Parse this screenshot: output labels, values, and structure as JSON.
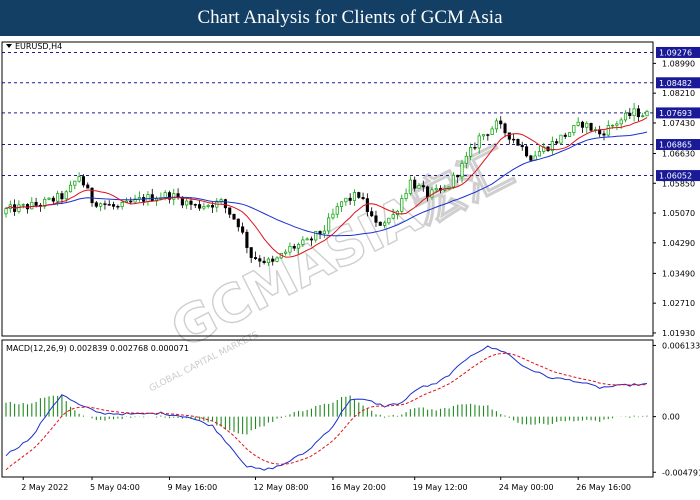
{
  "header": {
    "title": "Chart Analysis for Clients of GCM Asia"
  },
  "watermark": {
    "brand": "GCMASIA宏汇",
    "tagline": "GLOBAL CAPITAL MARKETS"
  },
  "colors": {
    "header_bg": "#123f63",
    "bull": "#00a000",
    "bear": "#000000",
    "ma_fast": "#e0101a",
    "ma_slow": "#1a2fd0",
    "level": "#1a1a99",
    "hist": "#1e8a1e"
  },
  "chart_data": [
    {
      "type": "candlestick",
      "symbol_label": "EURUSD,H4",
      "ylim": [
        1.0185,
        1.0955
      ],
      "y_ticks": [
        {
          "v": 1.0899,
          "label": "1.08990"
        },
        {
          "v": 1.0821,
          "label": "1.08210"
        },
        {
          "v": 1.0743,
          "label": "1.07430"
        },
        {
          "v": 1.0663,
          "label": "1.06630"
        },
        {
          "v": 1.0585,
          "label": "1.05850"
        },
        {
          "v": 1.0507,
          "label": "1.05070"
        },
        {
          "v": 1.0429,
          "label": "1.04290"
        },
        {
          "v": 1.0349,
          "label": "1.03490"
        },
        {
          "v": 1.0271,
          "label": "1.02710"
        },
        {
          "v": 1.0193,
          "label": "1.01930"
        }
      ],
      "levels": [
        {
          "v": 1.09276,
          "label": "1.09276"
        },
        {
          "v": 1.08482,
          "label": "1.08482"
        },
        {
          "v": 1.07693,
          "label": "1.07693"
        },
        {
          "v": 1.06865,
          "label": "1.06865"
        },
        {
          "v": 1.06052,
          "label": "1.06052"
        }
      ],
      "x_labels": [
        "2 May 2022",
        "5 May 04:00",
        "9 May 16:00",
        "12 May 08:00",
        "16 May 20:00",
        "19 May 12:00",
        "24 May 00:00",
        "26 May 16:00"
      ],
      "waypoints": [
        [
          0,
          1.0515
        ],
        [
          8,
          1.053
        ],
        [
          14,
          1.0555
        ],
        [
          17,
          1.0605
        ],
        [
          20,
          1.054
        ],
        [
          26,
          1.052
        ],
        [
          32,
          1.0545
        ],
        [
          38,
          1.0555
        ],
        [
          44,
          1.0525
        ],
        [
          50,
          1.0535
        ],
        [
          54,
          1.048
        ],
        [
          57,
          1.0395
        ],
        [
          62,
          1.0375
        ],
        [
          66,
          1.0415
        ],
        [
          70,
          1.043
        ],
        [
          74,
          1.0465
        ],
        [
          78,
          1.0535
        ],
        [
          82,
          1.0555
        ],
        [
          86,
          1.0475
        ],
        [
          90,
          1.05
        ],
        [
          94,
          1.059
        ],
        [
          98,
          1.0555
        ],
        [
          102,
          1.0565
        ],
        [
          106,
          1.063
        ],
        [
          110,
          1.0705
        ],
        [
          114,
          1.0738
        ],
        [
          118,
          1.0702
        ],
        [
          122,
          1.0655
        ],
        [
          126,
          1.0682
        ],
        [
          130,
          1.0712
        ],
        [
          134,
          1.0742
        ],
        [
          138,
          1.0715
        ],
        [
          142,
          1.0745
        ],
        [
          146,
          1.077
        ],
        [
          149,
          1.0765
        ]
      ]
    },
    {
      "type": "macd",
      "label": "MACD(12,26,9) 0.002839 0.002768 0.000071",
      "ylim": [
        -0.0052,
        0.0066
      ],
      "y_ticks": [
        {
          "v": 0.006133,
          "label": "0.006133"
        },
        {
          "v": 0.0,
          "label": "0.00"
        },
        {
          "v": -0.004791,
          "label": "-0.004791"
        }
      ],
      "macd_waypoints": [
        [
          0,
          -0.0033
        ],
        [
          6,
          -0.0018
        ],
        [
          10,
          0.0005
        ],
        [
          13,
          0.0019
        ],
        [
          17,
          0.001
        ],
        [
          22,
          0.0003
        ],
        [
          30,
          0.0002
        ],
        [
          36,
          0.0003
        ],
        [
          42,
          0.0
        ],
        [
          48,
          -0.0008
        ],
        [
          52,
          -0.0025
        ],
        [
          56,
          -0.0043
        ],
        [
          60,
          -0.0046
        ],
        [
          64,
          -0.0042
        ],
        [
          70,
          -0.003
        ],
        [
          76,
          -0.0008
        ],
        [
          80,
          0.0015
        ],
        [
          84,
          0.0014
        ],
        [
          88,
          0.0009
        ],
        [
          92,
          0.0012
        ],
        [
          96,
          0.0025
        ],
        [
          100,
          0.0028
        ],
        [
          104,
          0.0039
        ],
        [
          108,
          0.0053
        ],
        [
          112,
          0.006
        ],
        [
          116,
          0.0056
        ],
        [
          120,
          0.0044
        ],
        [
          126,
          0.0034
        ],
        [
          132,
          0.0031
        ],
        [
          138,
          0.0025
        ],
        [
          144,
          0.0027
        ],
        [
          149,
          0.0028
        ]
      ]
    }
  ]
}
